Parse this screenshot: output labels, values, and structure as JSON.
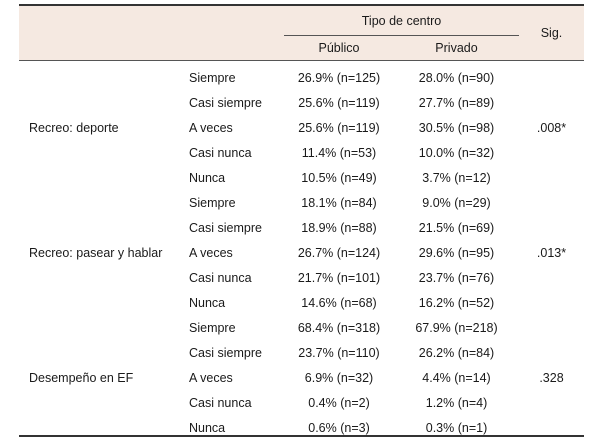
{
  "header": {
    "group_label": "Tipo de centro",
    "col_public": "Público",
    "col_private": "Privado",
    "col_sig": "Sig."
  },
  "groups": [
    {
      "label": "Recreo: deporte",
      "sig": ".008*",
      "rows": [
        {
          "resp": "Siempre",
          "pub": "26.9% (n=125)",
          "priv": "28.0% (n=90)"
        },
        {
          "resp": "Casi siempre",
          "pub": "25.6% (n=119)",
          "priv": "27.7% (n=89)"
        },
        {
          "resp": "A veces",
          "pub": "25.6% (n=119)",
          "priv": "30.5% (n=98)"
        },
        {
          "resp": "Casi nunca",
          "pub": "11.4% (n=53)",
          "priv": "10.0% (n=32)"
        },
        {
          "resp": "Nunca",
          "pub": "10.5% (n=49)",
          "priv": "3.7% (n=12)"
        }
      ]
    },
    {
      "label": "Recreo: pasear y hablar",
      "sig": ".013*",
      "rows": [
        {
          "resp": "Siempre",
          "pub": "18.1% (n=84)",
          "priv": "9.0% (n=29)"
        },
        {
          "resp": "Casi siempre",
          "pub": "18.9% (n=88)",
          "priv": "21.5% (n=69)"
        },
        {
          "resp": "A veces",
          "pub": "26.7% (n=124)",
          "priv": "29.6% (n=95)"
        },
        {
          "resp": "Casi nunca",
          "pub": "21.7% (n=101)",
          "priv": "23.7% (n=76)"
        },
        {
          "resp": "Nunca",
          "pub": "14.6% (n=68)",
          "priv": "16.2% (n=52)"
        }
      ]
    },
    {
      "label": "Desempeño en EF",
      "sig": ".328",
      "rows": [
        {
          "resp": "Siempre",
          "pub": "68.4% (n=318)",
          "priv": "67.9% (n=218)"
        },
        {
          "resp": "Casi siempre",
          "pub": "23.7% (n=110)",
          "priv": "26.2% (n=84)"
        },
        {
          "resp": "A veces",
          "pub": "6.9% (n=32)",
          "priv": "4.4% (n=14)"
        },
        {
          "resp": "Casi nunca",
          "pub": "0.4% (n=2)",
          "priv": "1.2% (n=4)"
        },
        {
          "resp": "Nunca",
          "pub": "0.6% (n=3)",
          "priv": "0.3% (n=1)"
        }
      ]
    }
  ]
}
